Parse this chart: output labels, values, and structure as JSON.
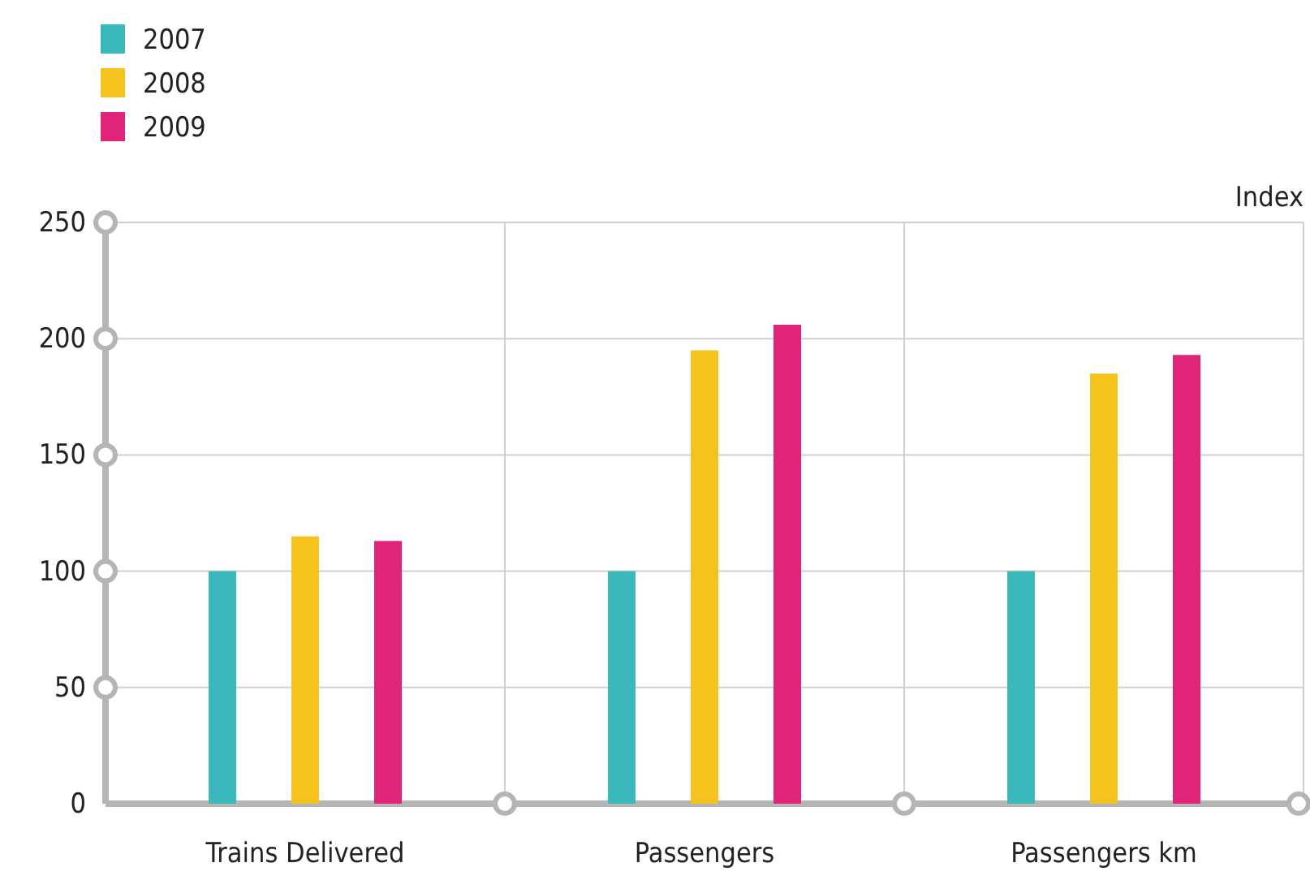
{
  "chart_data": {
    "type": "bar",
    "ylabel": "Index",
    "categories": [
      "Trains Delivered",
      "Passengers",
      "Passengers km"
    ],
    "series": [
      {
        "name": "2007",
        "color": "#3bb8bc",
        "values": [
          100,
          100,
          100
        ]
      },
      {
        "name": "2008",
        "color": "#f5c21e",
        "values": [
          115,
          195,
          185
        ]
      },
      {
        "name": "2009",
        "color": "#e0247a",
        "values": [
          113,
          206,
          193
        ]
      }
    ],
    "ylim": [
      0,
      250
    ],
    "yticks": [
      0,
      50,
      100,
      150,
      200,
      250
    ],
    "grid": true,
    "legend": "top left"
  }
}
